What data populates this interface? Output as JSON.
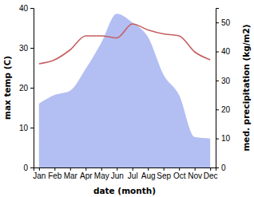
{
  "chart_data": {
    "type": "line",
    "x_label": "date (month)",
    "y_label": "max temp (C)",
    "y2_label": "med. precipitation (kg/m2)",
    "categories": [
      "Jan",
      "Feb",
      "Mar",
      "Apr",
      "May",
      "Jun",
      "Jul",
      "Aug",
      "Sep",
      "Oct",
      "Nov",
      "Dec"
    ],
    "series": [
      {
        "type": "area",
        "axis": "y2",
        "color": "#b3bef3",
        "values": [
          22,
          25,
          26.5,
          34,
          43,
          53,
          50,
          45,
          32,
          25,
          10.5,
          10
        ]
      },
      {
        "type": "line",
        "color": "#c65f60",
        "values": [
          26,
          27,
          29.5,
          33,
          33,
          32.5,
          36,
          34.5,
          33.5,
          33,
          29,
          27
        ]
      }
    ],
    "ylim": [
      0,
      40
    ],
    "yticks": [
      0,
      10,
      20,
      30,
      40
    ],
    "y2lim": [
      0,
      55
    ],
    "y2ticks": [
      0,
      10,
      20,
      30,
      40,
      50
    ]
  }
}
